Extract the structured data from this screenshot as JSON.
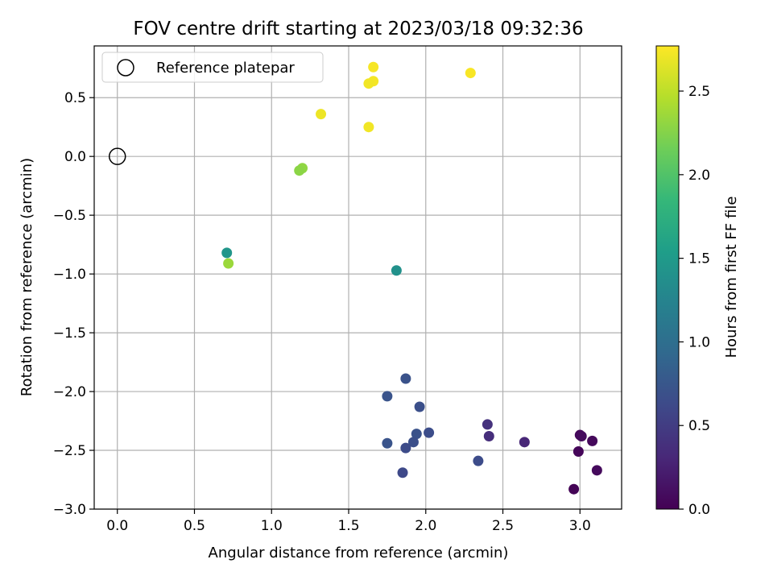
{
  "chart_data": {
    "type": "scatter",
    "title": "FOV centre drift starting at 2023/03/18 09:32:36",
    "xlabel": "Angular distance from reference (arcmin)",
    "ylabel": "Rotation from reference (arcmin)",
    "xlim": [
      -0.15,
      3.27
    ],
    "ylim": [
      -3.0,
      0.94
    ],
    "xticks": [
      "0.0",
      "0.5",
      "1.0",
      "1.5",
      "2.0",
      "2.5",
      "3.0"
    ],
    "yticks": [
      "0.5",
      "0.0",
      "−0.5",
      "−1.0",
      "−1.5",
      "−2.0",
      "−2.5",
      "−3.0"
    ],
    "grid": true,
    "legend": {
      "position": "top-left",
      "label": "Reference platepar"
    },
    "reference_point": {
      "x": 0.0,
      "y": 0.0
    },
    "colorbar": {
      "label": "Hours from first FF file",
      "min": 0.0,
      "max": 2.77,
      "ticks": [
        "0.0",
        "0.5",
        "1.0",
        "1.5",
        "2.0",
        "2.5"
      ],
      "colormap": "viridis"
    },
    "points": [
      {
        "x": 2.29,
        "y": 0.71,
        "c": 2.75
      },
      {
        "x": 1.66,
        "y": 0.76,
        "c": 2.74
      },
      {
        "x": 1.66,
        "y": 0.64,
        "c": 2.73
      },
      {
        "x": 1.63,
        "y": 0.62,
        "c": 2.72
      },
      {
        "x": 1.32,
        "y": 0.36,
        "c": 2.7
      },
      {
        "x": 1.63,
        "y": 0.25,
        "c": 2.72
      },
      {
        "x": 1.2,
        "y": -0.1,
        "c": 2.3
      },
      {
        "x": 1.18,
        "y": -0.12,
        "c": 2.28
      },
      {
        "x": 0.71,
        "y": -0.82,
        "c": 1.45
      },
      {
        "x": 0.72,
        "y": -0.91,
        "c": 2.35
      },
      {
        "x": 1.81,
        "y": -0.97,
        "c": 1.4
      },
      {
        "x": 1.87,
        "y": -1.89,
        "c": 0.7
      },
      {
        "x": 1.75,
        "y": -2.04,
        "c": 0.72
      },
      {
        "x": 1.96,
        "y": -2.13,
        "c": 0.68
      },
      {
        "x": 1.94,
        "y": -2.36,
        "c": 0.7
      },
      {
        "x": 2.02,
        "y": -2.35,
        "c": 0.66
      },
      {
        "x": 1.92,
        "y": -2.43,
        "c": 0.68
      },
      {
        "x": 1.75,
        "y": -2.44,
        "c": 0.72
      },
      {
        "x": 1.87,
        "y": -2.48,
        "c": 0.64
      },
      {
        "x": 1.85,
        "y": -2.69,
        "c": 0.62
      },
      {
        "x": 2.34,
        "y": -2.59,
        "c": 0.65
      },
      {
        "x": 2.4,
        "y": -2.28,
        "c": 0.4
      },
      {
        "x": 2.41,
        "y": -2.38,
        "c": 0.36
      },
      {
        "x": 2.64,
        "y": -2.43,
        "c": 0.3
      },
      {
        "x": 3.0,
        "y": -2.37,
        "c": 0.05
      },
      {
        "x": 3.01,
        "y": -2.38,
        "c": 0.08
      },
      {
        "x": 3.08,
        "y": -2.42,
        "c": 0.06
      },
      {
        "x": 2.99,
        "y": -2.51,
        "c": 0.04
      },
      {
        "x": 3.11,
        "y": -2.67,
        "c": 0.07
      },
      {
        "x": 2.96,
        "y": -2.83,
        "c": 0.02
      }
    ]
  }
}
